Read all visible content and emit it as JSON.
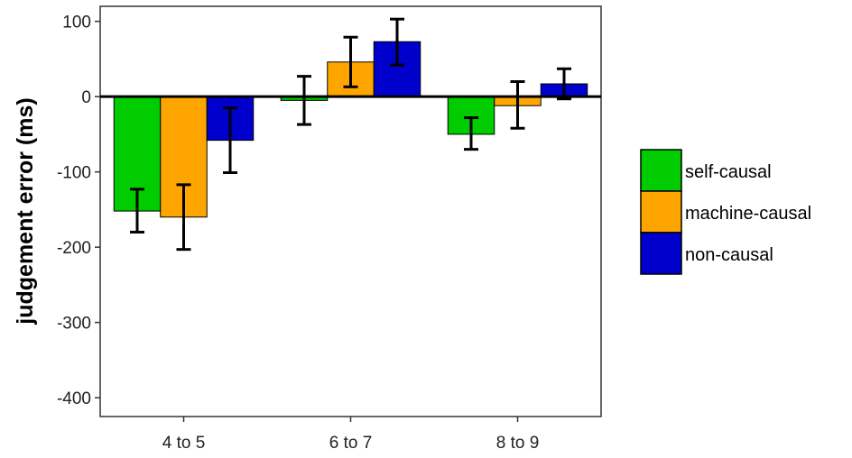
{
  "chart_data": {
    "type": "bar",
    "title": "",
    "xlabel": "",
    "ylabel": "judgement error (ms)",
    "categories": [
      "4 to 5",
      "6 to 7",
      "8 to 9"
    ],
    "ylim": [
      -425,
      120
    ],
    "yticks": [
      100,
      0,
      -100,
      -200,
      -300,
      -400
    ],
    "grid": false,
    "legend_position": "right",
    "series": [
      {
        "name": "self-causal",
        "color": "#00cc00",
        "values": [
          -152,
          -5,
          -50
        ],
        "err_low": [
          -180,
          -37,
          -70
        ],
        "err_high": [
          -123,
          27,
          -28
        ]
      },
      {
        "name": "machine-causal",
        "color": "#ffa500",
        "values": [
          -160,
          46,
          -12
        ],
        "err_low": [
          -203,
          13,
          -42
        ],
        "err_high": [
          -117,
          79,
          20
        ]
      },
      {
        "name": "non-causal",
        "color": "#0000cc",
        "values": [
          -58,
          73,
          17
        ],
        "err_low": [
          -101,
          42,
          -3
        ],
        "err_high": [
          -15,
          103,
          37
        ]
      }
    ]
  }
}
